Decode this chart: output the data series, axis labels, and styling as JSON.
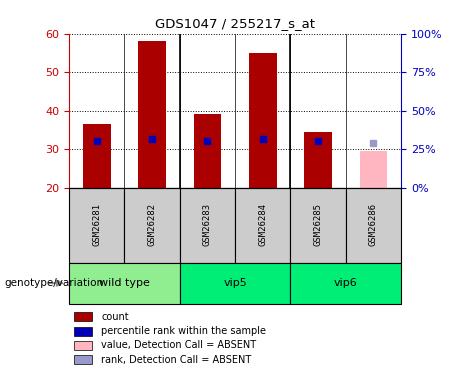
{
  "title": "GDS1047 / 255217_s_at",
  "samples": [
    "GSM26281",
    "GSM26282",
    "GSM26283",
    "GSM26284",
    "GSM26285",
    "GSM26286"
  ],
  "count_values": [
    36.5,
    58.0,
    39.0,
    55.0,
    34.5,
    29.5
  ],
  "percentile_values": [
    30.0,
    31.5,
    30.0,
    31.5,
    30.0,
    29.0
  ],
  "absent_flags": [
    false,
    false,
    false,
    false,
    false,
    true
  ],
  "ylim_left": [
    20,
    60
  ],
  "ylim_right": [
    0,
    100
  ],
  "yticks_left": [
    20,
    30,
    40,
    50,
    60
  ],
  "yticks_right": [
    0,
    25,
    50,
    75,
    100
  ],
  "yticklabels_right": [
    "0%",
    "25%",
    "50%",
    "75%",
    "100%"
  ],
  "groups": [
    {
      "label": "wild type",
      "start": 0,
      "end": 1,
      "color": "#90EE90"
    },
    {
      "label": "vip5",
      "start": 2,
      "end": 3,
      "color": "#00EE76"
    },
    {
      "label": "vip6",
      "start": 4,
      "end": 5,
      "color": "#00EE76"
    }
  ],
  "bar_color_present": "#AA0000",
  "bar_color_absent": "#FFB6C1",
  "rank_color_present": "#0000BB",
  "rank_color_absent": "#9999CC",
  "bar_width": 0.5,
  "grid_color": "black",
  "left_tick_color": "#CC0000",
  "right_tick_color": "#0000BB",
  "sample_box_color": "#CCCCCC",
  "legend_items": [
    {
      "label": "count",
      "color": "#AA0000"
    },
    {
      "label": "percentile rank within the sample",
      "color": "#0000BB"
    },
    {
      "label": "value, Detection Call = ABSENT",
      "color": "#FFB6C1"
    },
    {
      "label": "rank, Detection Call = ABSENT",
      "color": "#9999CC"
    }
  ]
}
